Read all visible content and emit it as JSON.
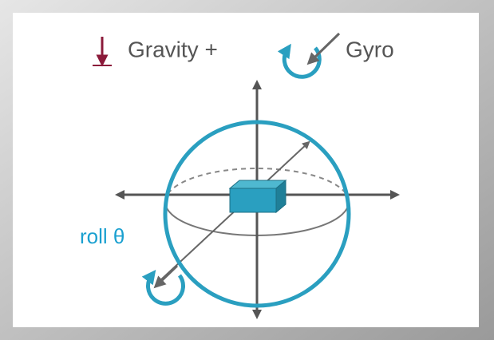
{
  "legend": {
    "gravity": "Gravity +",
    "gyro": "Gyro"
  },
  "axis_labels": {
    "roll": "roll θ"
  }
}
